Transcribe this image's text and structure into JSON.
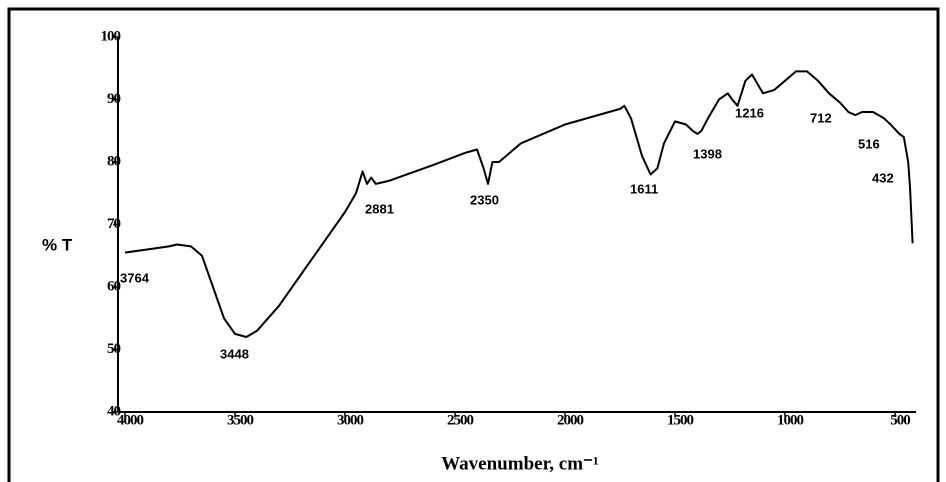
{
  "chart_data": {
    "type": "line",
    "y_label": "% T",
    "x_label": "Wavenumber, cm⁻¹",
    "x": [
      4000,
      3900,
      3800,
      3764,
      3700,
      3650,
      3600,
      3550,
      3500,
      3448,
      3400,
      3300,
      3200,
      3100,
      3000,
      2950,
      2920,
      2900,
      2881,
      2860,
      2800,
      2600,
      2450,
      2400,
      2370,
      2350,
      2330,
      2300,
      2200,
      2000,
      1800,
      1750,
      1730,
      1700,
      1650,
      1611,
      1580,
      1550,
      1500,
      1450,
      1420,
      1398,
      1380,
      1350,
      1300,
      1260,
      1240,
      1216,
      1180,
      1150,
      1100,
      1050,
      1000,
      950,
      900,
      850,
      800,
      750,
      712,
      680,
      650,
      600,
      550,
      520,
      480,
      460,
      440,
      432,
      420
    ],
    "values": [
      65.5,
      66,
      66.5,
      66.8,
      66.5,
      65,
      60,
      55,
      52.5,
      52,
      53,
      57,
      62,
      67,
      72,
      75,
      78.5,
      76.5,
      77.5,
      76.5,
      77,
      79.5,
      81.5,
      82,
      79,
      76.5,
      80,
      80,
      83,
      86,
      88,
      88.5,
      89,
      87,
      81,
      78,
      79,
      83,
      86.5,
      86,
      85,
      84.5,
      85,
      87,
      90,
      91,
      90,
      89,
      93,
      94,
      91,
      91.5,
      93,
      94.5,
      94.5,
      93,
      91,
      89.5,
      88,
      87.5,
      88,
      88,
      87,
      86,
      84.5,
      84,
      80,
      76,
      67
    ],
    "color": "#000000",
    "annotations": [
      "3764",
      "3448",
      "2881",
      "2350",
      "1611",
      "1398",
      "1216",
      "712",
      "516",
      "432"
    ],
    "xlim": [
      4000,
      400
    ],
    "ylim": [
      40,
      100
    ],
    "xticks": [
      4000,
      3500,
      3000,
      2500,
      2000,
      1500,
      1000,
      500
    ],
    "yticks": [
      40,
      50,
      60,
      70,
      80,
      90,
      100
    ]
  }
}
